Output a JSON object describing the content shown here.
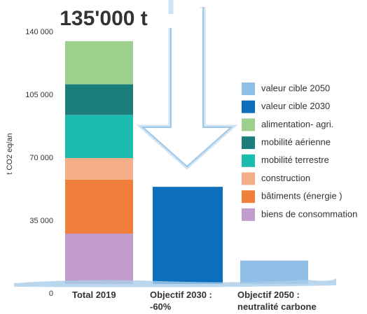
{
  "chart_data": {
    "type": "stacked-bar",
    "title": "135'000 t",
    "y_label": "t CO2 eq/an",
    "categories": [
      "Total 2019",
      "Objectif 2030 : -60%",
      "Objectif 2050 : neutralité carbone"
    ],
    "series": [
      {
        "name": "biens de consommation",
        "color": "#c29ccc",
        "values": [
          28000,
          null,
          null
        ]
      },
      {
        "name": "bâtiments (énergie )",
        "color": "#f07f3c",
        "values": [
          30000,
          null,
          null
        ]
      },
      {
        "name": "construction",
        "color": "#f6ae88",
        "values": [
          12000,
          null,
          null
        ]
      },
      {
        "name": "mobilité terrestre",
        "color": "#1dbcb1",
        "values": [
          24000,
          null,
          null
        ]
      },
      {
        "name": "mobilité aérienne",
        "color": "#1b7e7a",
        "values": [
          17000,
          null,
          null
        ]
      },
      {
        "name": "alimentation- agri.",
        "color": "#9dd08c",
        "values": [
          24000,
          null,
          null
        ]
      },
      {
        "name": "valeur cible 2030",
        "color": "#0b6fbd",
        "values": [
          null,
          54000,
          null
        ]
      },
      {
        "name": "valeur cible 2050",
        "color": "#8fbfe6",
        "values": [
          null,
          null,
          13000
        ]
      }
    ],
    "ylim": [
      0,
      140000
    ],
    "yticks": [
      0,
      {
        "value": 35000,
        "label": "35 000"
      },
      {
        "value": 70000,
        "label": "70 000"
      },
      {
        "value": 105000,
        "label": "105 000"
      },
      {
        "value": 140000,
        "label": "140 000"
      }
    ]
  }
}
